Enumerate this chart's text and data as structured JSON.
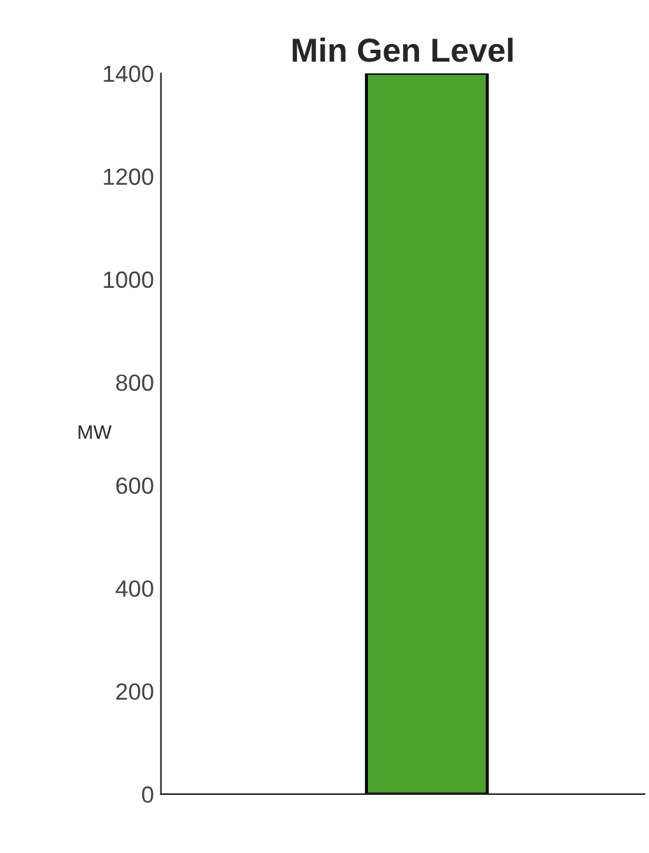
{
  "chart_data": {
    "type": "bar",
    "title": "Min Gen Level",
    "ylabel": "MW",
    "categories": [
      null
    ],
    "values": [
      1400
    ],
    "color": "#4ca22c",
    "ylim": [
      0,
      1400
    ],
    "yticks": [
      0,
      200,
      400,
      600,
      800,
      1000,
      1200,
      1400
    ],
    "grid": false,
    "legend": false
  }
}
